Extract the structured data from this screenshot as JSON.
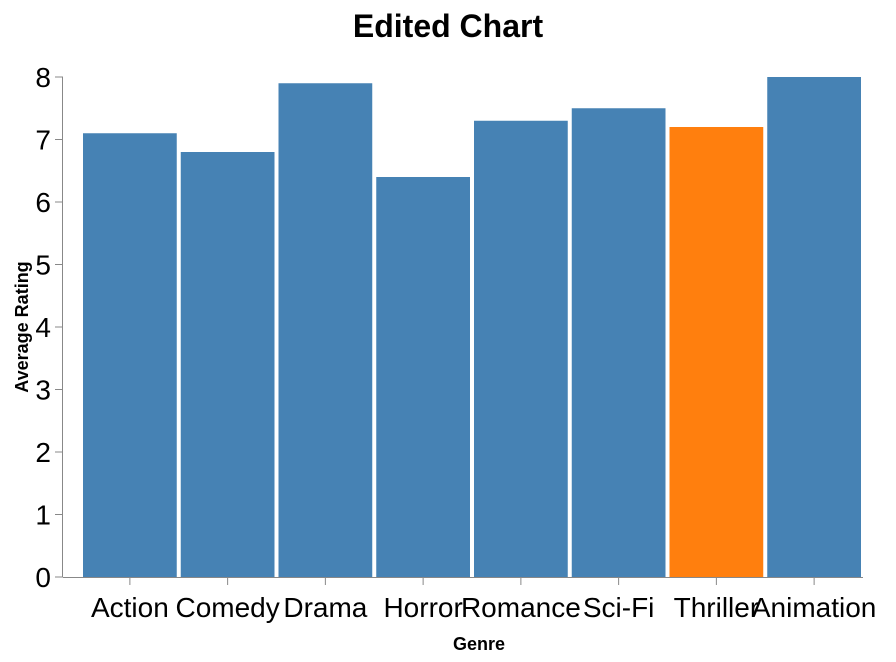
{
  "chart_data": {
    "type": "bar",
    "title": "Edited Chart",
    "xlabel": "Genre",
    "ylabel": "Average Rating",
    "categories": [
      "Action",
      "Comedy",
      "Drama",
      "Horror",
      "Romance",
      "Sci-Fi",
      "Thriller",
      "Animation"
    ],
    "values": [
      7.1,
      6.8,
      7.9,
      6.4,
      7.3,
      7.5,
      7.2,
      8.0
    ],
    "highlight_index": 6,
    "ylim": [
      0,
      8
    ],
    "yticks": [
      0,
      1,
      2,
      3,
      4,
      5,
      6,
      7,
      8
    ],
    "grid": false,
    "colors": {
      "bar": "#4682b4",
      "highlight": "#ff7f0e"
    }
  }
}
